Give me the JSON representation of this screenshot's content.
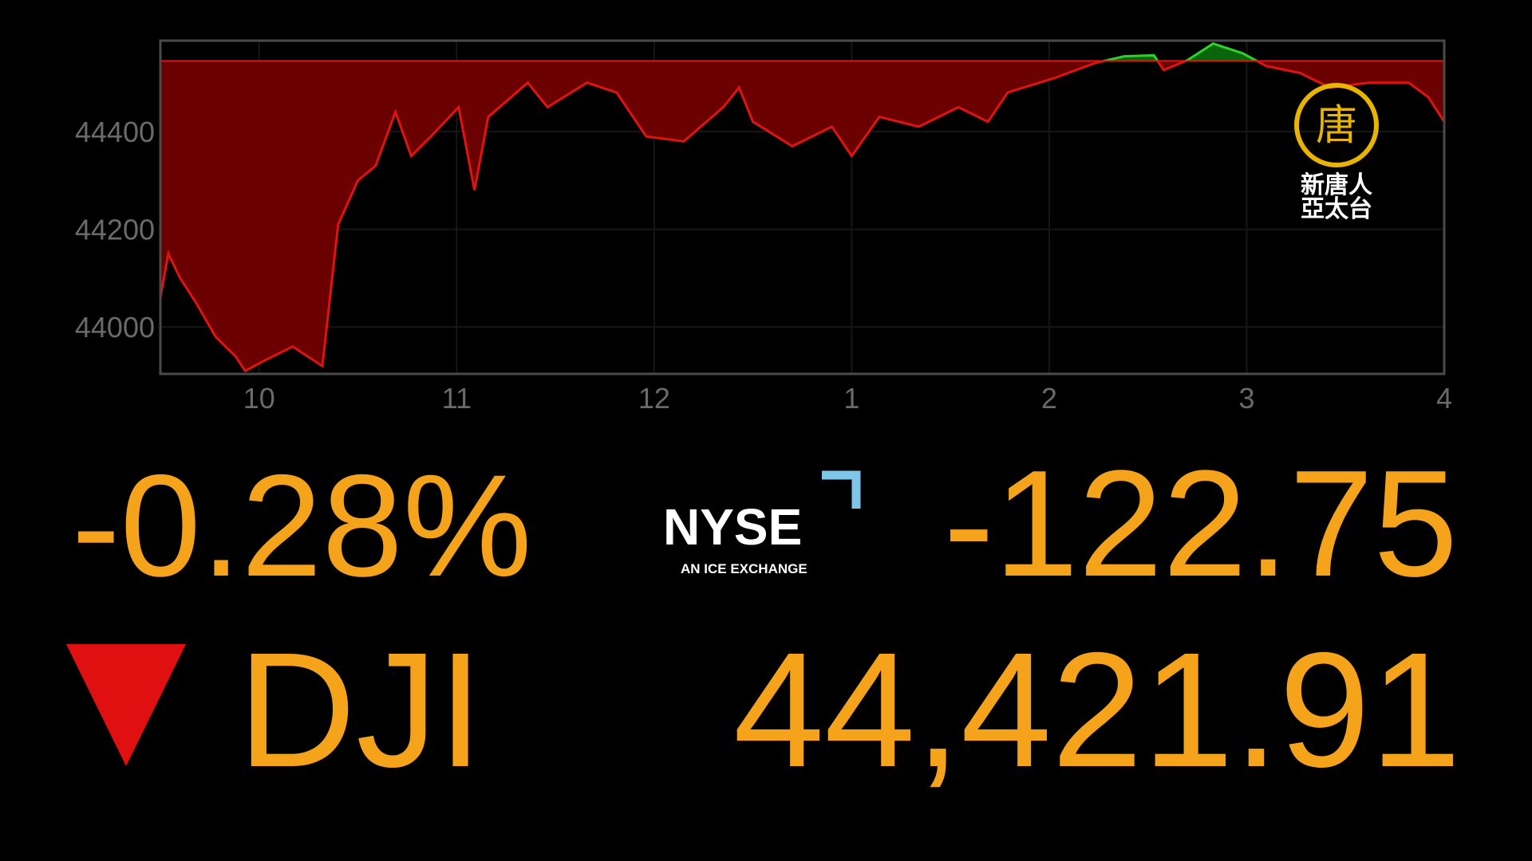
{
  "chart_data": {
    "type": "area",
    "x": [
      9.5,
      9.54,
      9.6,
      9.68,
      9.78,
      9.88,
      9.93,
      10.02,
      10.17,
      10.32,
      10.4,
      10.5,
      10.59,
      10.69,
      10.77,
      10.87,
      11.01,
      11.09,
      11.16,
      11.36,
      11.46,
      11.66,
      11.81,
      11.96,
      12.15,
      12.35,
      12.43,
      12.5,
      12.7,
      12.9,
      13.0,
      13.14,
      13.34,
      13.54,
      13.69,
      13.79,
      14.03,
      14.23,
      14.38,
      14.53,
      14.58,
      14.7,
      14.83,
      14.98,
      15.1,
      15.27,
      15.42,
      15.62,
      15.82,
      15.92,
      16.0
    ],
    "values": [
      44060,
      44150,
      44100,
      44050,
      43980,
      43940,
      43910,
      43930,
      43960,
      43920,
      44210,
      44300,
      44330,
      44440,
      44350,
      44390,
      44450,
      44280,
      44430,
      44500,
      44450,
      44500,
      44480,
      44390,
      44380,
      44450,
      44490,
      44420,
      44370,
      44410,
      44350,
      44430,
      44410,
      44450,
      44420,
      44480,
      44510,
      44540,
      44554,
      44556,
      44526,
      44546,
      44580,
      44560,
      44534,
      44520,
      44490,
      44500,
      44500,
      44470,
      44420
    ],
    "baseline": 44544.66,
    "below_color": "#6a0000",
    "below_line_color": "#e01212",
    "above_color": "#0b650b",
    "above_line_color": "#2fd02f",
    "xlim": [
      9.5,
      16
    ],
    "ylim": [
      43904,
      44586
    ],
    "xticks": [
      10,
      11,
      {
        "value": 12,
        "label": "12"
      },
      {
        "value": 13,
        "label": "1"
      },
      {
        "value": 14,
        "label": "2"
      },
      {
        "value": 15,
        "label": "3"
      },
      {
        "value": 16,
        "label": "4"
      }
    ],
    "yticks": [
      44000,
      44200,
      44400
    ],
    "grid": true
  },
  "ticker": {
    "percent_change": "-0.28%",
    "point_change": "-122.75",
    "symbol": "DJI",
    "price": "44,421.91"
  },
  "exchange": {
    "name": "NYSE",
    "tagline": "AN ICE EXCHANGE"
  },
  "channel": {
    "emblem": "唐",
    "line1": "新唐人",
    "line2": "亞太台"
  }
}
